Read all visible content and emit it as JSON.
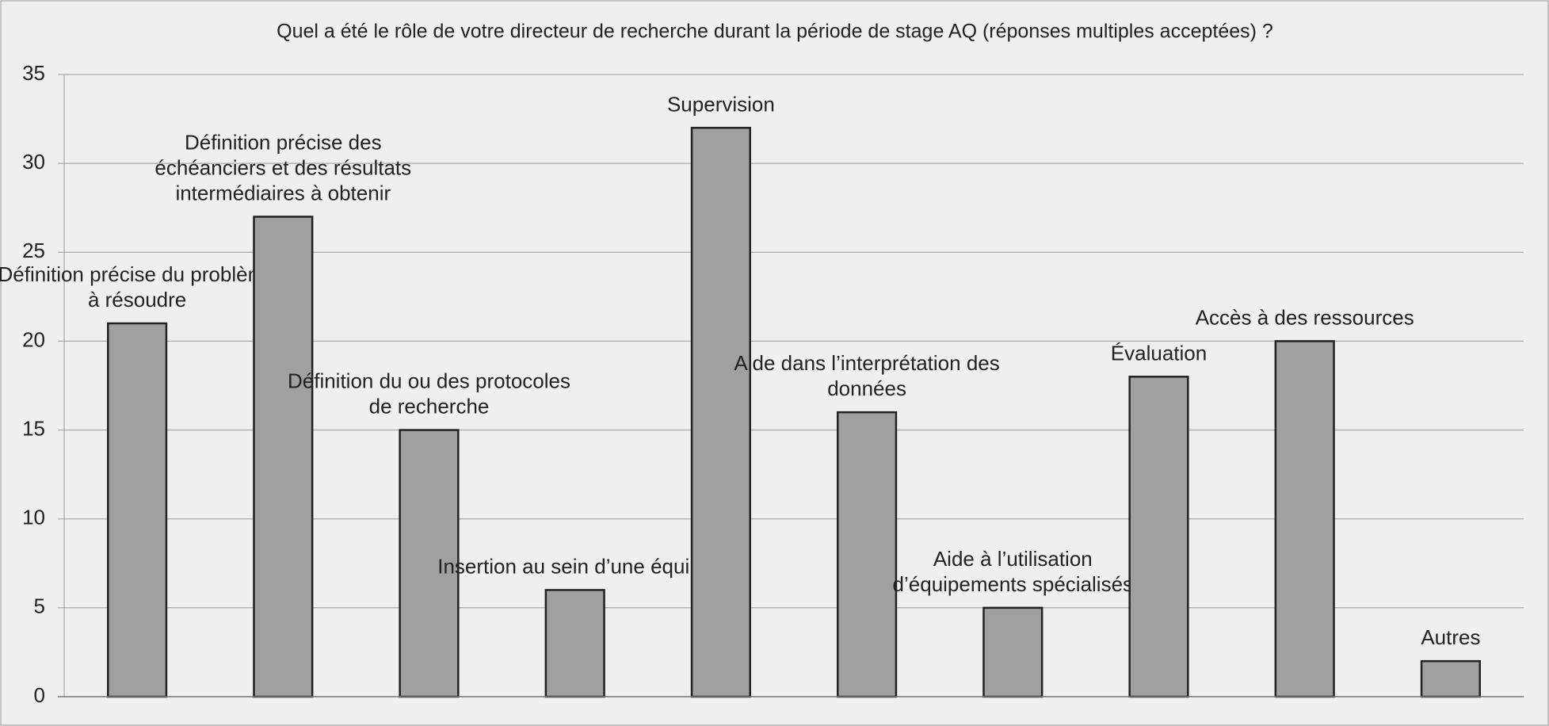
{
  "chart_data": {
    "type": "bar",
    "title": "Quel a été le rôle de votre directeur de recherche durant la période de stage AQ (réponses multiples acceptées) ?",
    "categories": [
      "Définition précise du problème à résoudre",
      "Définition précise des échéanciers et des résultats intermédiaires à obtenir",
      "Définition du ou des protocoles de recherche",
      "Insertion au sein d’une équipe",
      "Supervision",
      "Aide dans l’interprétation des données",
      "Aide à l’utilisation d’équipements spécialisés",
      "Évaluation",
      "Accès à des ressources",
      "Autres"
    ],
    "values": [
      21,
      27,
      15,
      6,
      32,
      16,
      5,
      18,
      20,
      2
    ],
    "color": "#a0a0a0",
    "ylim": [
      0,
      35
    ],
    "yticks": [
      0,
      5,
      10,
      15,
      20,
      25,
      30,
      35
    ],
    "grid": true
  }
}
